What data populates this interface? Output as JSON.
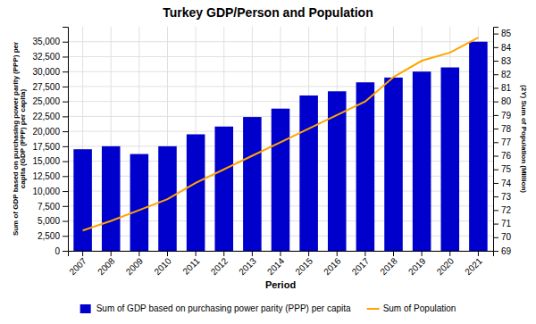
{
  "chart_data": {
    "type": "bar",
    "title": "Turkey GDP/Person and Population",
    "x_label": "Period",
    "y_label": "Sum of GDP based on purchasing power parity (PPP) per\ncapita (GDP (PPP) per capita)",
    "y2_label": "(2Y) Sum of Population (Million)",
    "categories": [
      "2007",
      "2008",
      "2009",
      "2010",
      "2011",
      "2012",
      "2013",
      "2014",
      "2015",
      "2016",
      "2017",
      "2018",
      "2019",
      "2020",
      "2021"
    ],
    "series": [
      {
        "name": "Sum of GDP based on purchasing power parity (PPP) per capita",
        "type": "bar",
        "color": "#0000CC",
        "values": [
          17000,
          17500,
          16200,
          17500,
          19500,
          20800,
          22400,
          23800,
          26000,
          26700,
          28200,
          29000,
          30000,
          30700,
          35000
        ]
      },
      {
        "name": "Sum of Population",
        "type": "line",
        "color": "#FFA500",
        "axis": "y2",
        "values": [
          70.5,
          71.2,
          72.0,
          72.8,
          74.0,
          75.0,
          76.0,
          77.0,
          78.0,
          79.0,
          80.0,
          81.8,
          83.0,
          83.6,
          84.7
        ]
      }
    ],
    "ylim": [
      0,
      37500
    ],
    "yticks": [
      0,
      {
        "value": 2500,
        "label": "2,500"
      },
      {
        "value": 5000,
        "label": "5,000"
      },
      {
        "value": 7500,
        "label": "7,500"
      },
      {
        "value": 10000,
        "label": "10,000"
      },
      {
        "value": 12500,
        "label": "12,500"
      },
      {
        "value": 15000,
        "label": "15,000"
      },
      {
        "value": 17500,
        "label": "17,500"
      },
      {
        "value": 20000,
        "label": "20,000"
      },
      {
        "value": 22500,
        "label": "22,500"
      },
      {
        "value": 25000,
        "label": "25,000"
      },
      {
        "value": 27500,
        "label": "27,500"
      },
      {
        "value": 30000,
        "label": "30,000"
      },
      {
        "value": 32500,
        "label": "32,500"
      },
      {
        "value": 35000,
        "label": "35,000"
      }
    ],
    "y2lim": [
      69.0,
      85.5
    ],
    "y2ticks": [
      69,
      70,
      71,
      72,
      73,
      74,
      75,
      76,
      77,
      78,
      79,
      80,
      81,
      82,
      83,
      84,
      85
    ],
    "grid": true,
    "legend": "bottom"
  }
}
